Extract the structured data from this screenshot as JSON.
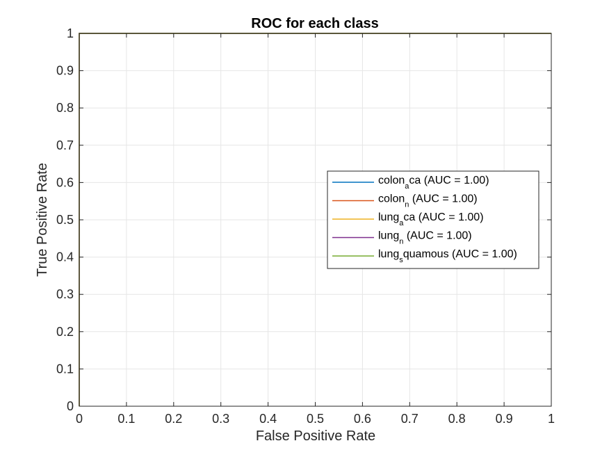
{
  "chart_data": {
    "type": "line",
    "title": "ROC for each class",
    "xlabel": "False Positive Rate",
    "ylabel": "True Positive Rate",
    "xlim": [
      0,
      1
    ],
    "ylim": [
      0,
      1
    ],
    "xticks": [
      "0",
      "0.1",
      "0.2",
      "0.3",
      "0.4",
      "0.5",
      "0.6",
      "0.7",
      "0.8",
      "0.9",
      "1"
    ],
    "yticks": [
      "0",
      "0.1",
      "0.2",
      "0.3",
      "0.4",
      "0.5",
      "0.6",
      "0.7",
      "0.8",
      "0.9",
      "1"
    ],
    "grid": true,
    "legend_position": "right",
    "series": [
      {
        "label_main": "colon",
        "label_sub": "a",
        "label_rest": "ca (AUC = 1.00)",
        "color": "#0072BD",
        "x": [
          0,
          0,
          1
        ],
        "y": [
          0,
          1,
          1
        ]
      },
      {
        "label_main": "colon",
        "label_sub": "n",
        "label_rest": " (AUC = 1.00)",
        "color": "#D95319",
        "x": [
          0,
          0,
          0.03,
          1
        ],
        "y": [
          0,
          1,
          1,
          1
        ]
      },
      {
        "label_main": "lung",
        "label_sub": "a",
        "label_rest": "ca (AUC = 1.00)",
        "color": "#EDB120",
        "x": [
          0,
          0,
          1
        ],
        "y": [
          0,
          1,
          1
        ]
      },
      {
        "label_main": "lung",
        "label_sub": "n",
        "label_rest": " (AUC = 1.00)",
        "color": "#7E2F8E",
        "x": [
          0,
          0,
          1
        ],
        "y": [
          0,
          1,
          1
        ]
      },
      {
        "label_main": "lung",
        "label_sub": "s",
        "label_rest": "quamous (AUC = 1.00)",
        "color": "#77AC30",
        "x": [
          0,
          0,
          1
        ],
        "y": [
          0,
          1,
          1
        ]
      }
    ]
  }
}
